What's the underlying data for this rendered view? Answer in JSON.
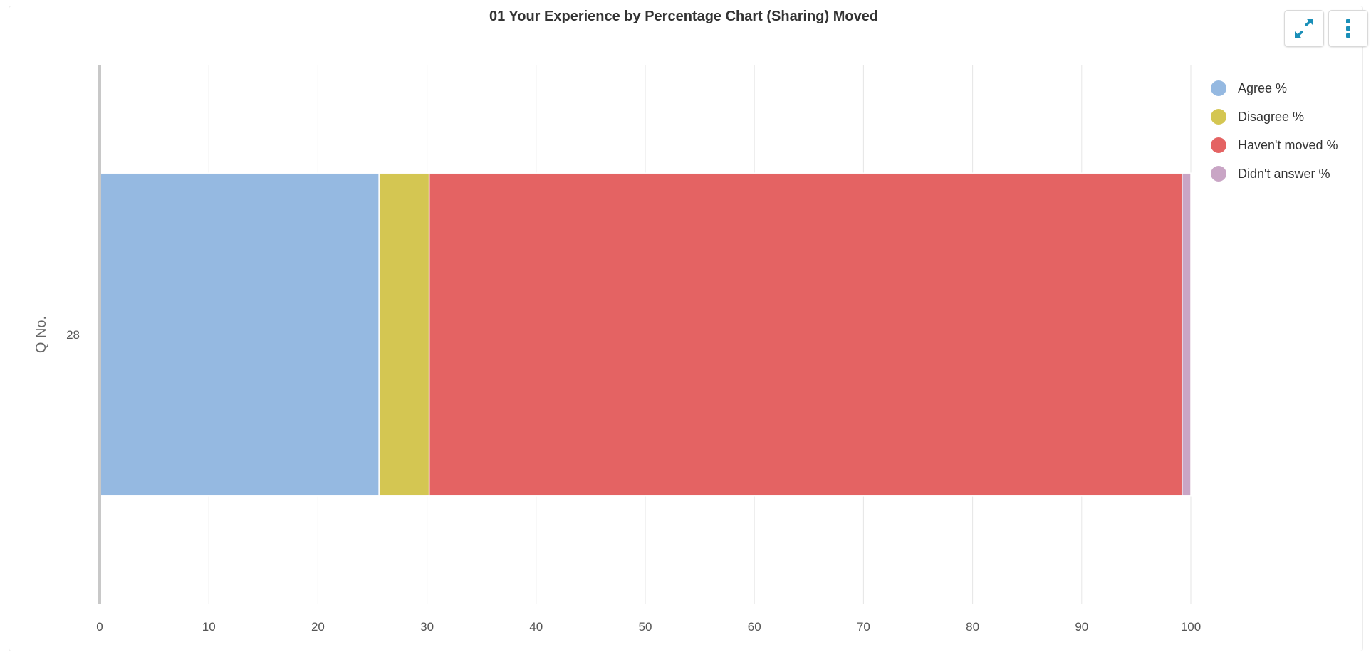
{
  "chart_data": {
    "type": "bar",
    "orientation": "horizontal",
    "stacked": true,
    "title": "01 Your Experience by Percentage Chart (Sharing) Moved",
    "ylabel": "Q No.",
    "xlabel": "",
    "categories": [
      "28"
    ],
    "xlim": [
      0,
      100
    ],
    "x_ticks": [
      "0",
      "10",
      "20",
      "30",
      "40",
      "50",
      "60",
      "70",
      "80",
      "90",
      "100"
    ],
    "grid": true,
    "legend_position": "top-right",
    "series": [
      {
        "name": "Agree %",
        "values": [
          25.6
        ],
        "color": "#95b9e1"
      },
      {
        "name": "Disagree %",
        "values": [
          4.6
        ],
        "color": "#d4c652"
      },
      {
        "name": "Haven't moved %",
        "values": [
          69.0
        ],
        "color": "#e46363"
      },
      {
        "name": "Didn't answer %",
        "values": [
          0.8
        ],
        "color": "#c9a5c5"
      }
    ]
  },
  "toolbar": {
    "expand_icon": "expand-icon",
    "menu_icon": "kebab-menu-icon",
    "accent": "#1a8fb8"
  }
}
